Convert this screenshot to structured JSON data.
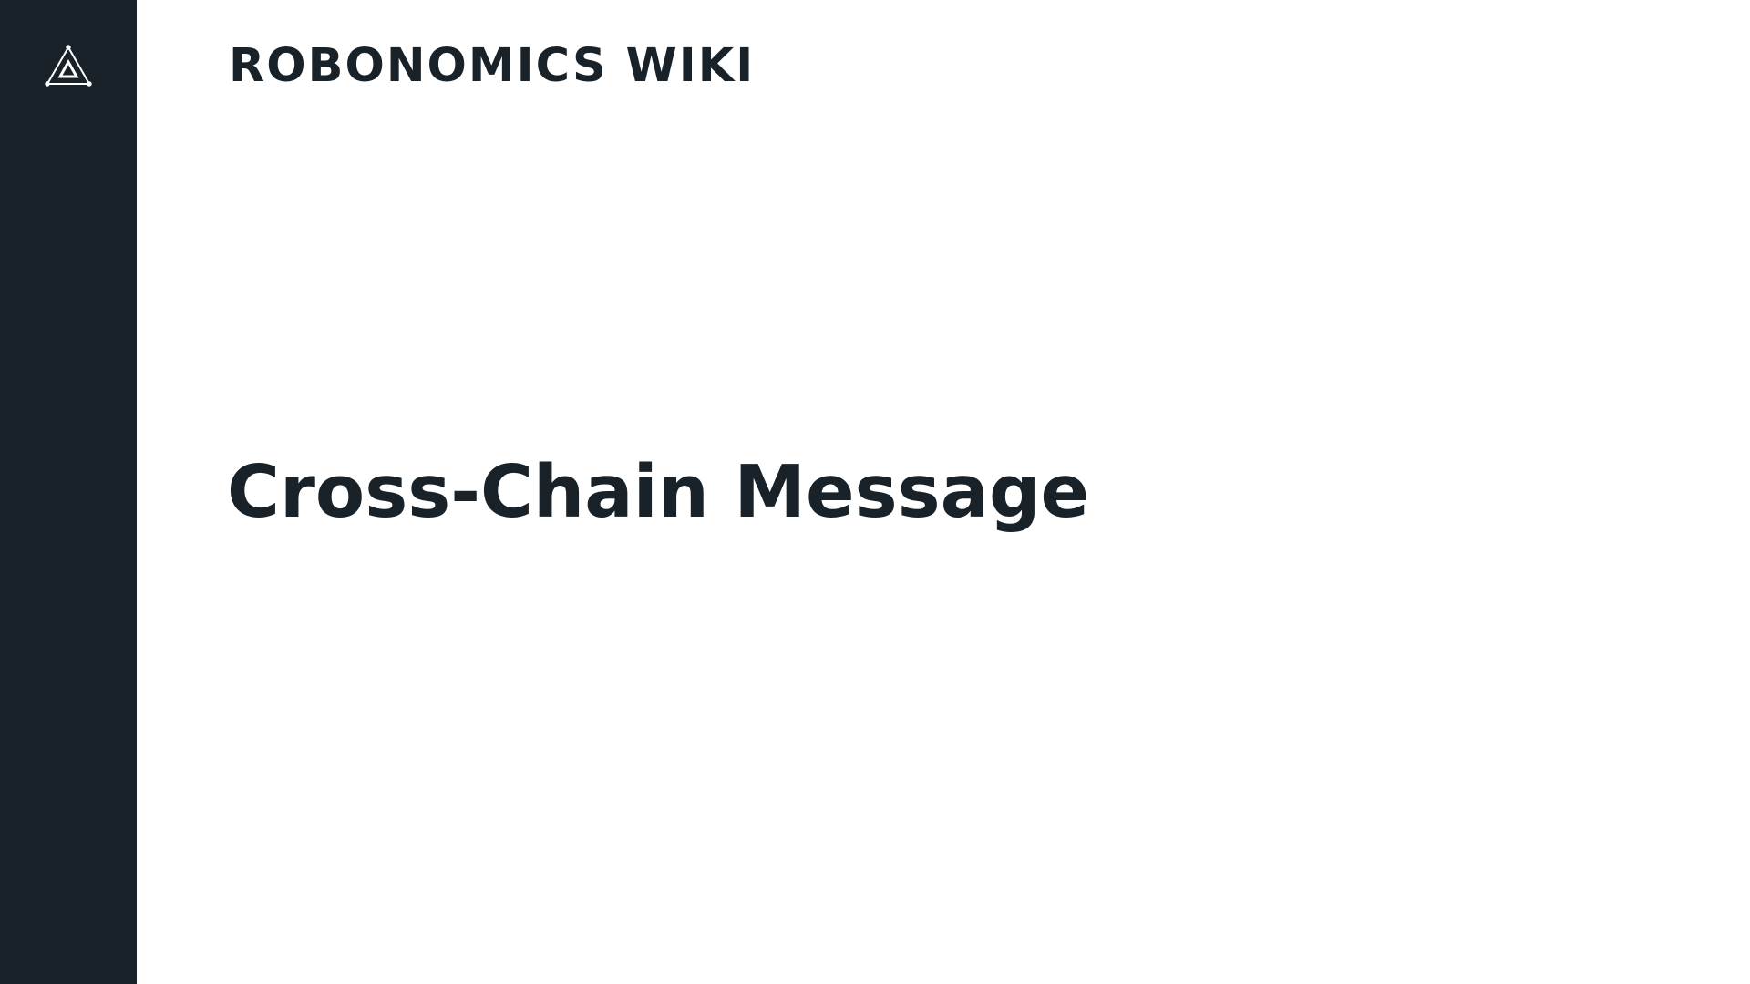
{
  "colors": {
    "sidebar_background": "#182228",
    "text": "#182228",
    "logo_stroke": "#ffffff",
    "page_background": "#ffffff"
  },
  "sidebar": {
    "logo_icon": "robonomics-triangle-logo-icon"
  },
  "header": {
    "site_title": "ROBONOMICS WIKI"
  },
  "main": {
    "heading": "Cross-Chain Message"
  }
}
